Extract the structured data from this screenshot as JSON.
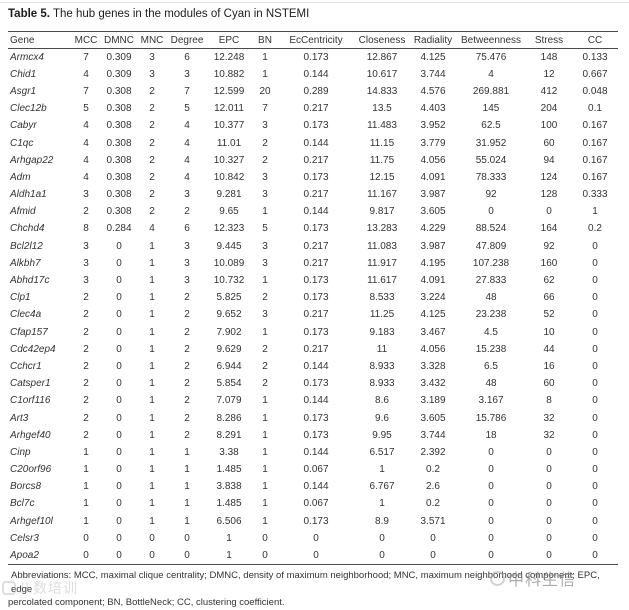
{
  "title": {
    "label": "Table 5.",
    "text": " The hub genes in the modules of Cyan in NSTEMI"
  },
  "table": {
    "columns": [
      "Gene",
      "MCC",
      "DMNC",
      "MNC",
      "Degree",
      "EPC",
      "BN",
      "EcCentricity",
      "Closeness",
      "Radiality",
      "Betweenness",
      "Stress",
      "CC"
    ],
    "rows": [
      [
        "Armcx4",
        "7",
        "0.309",
        "3",
        "6",
        "12.248",
        "1",
        "0.173",
        "12.867",
        "4.125",
        "75.476",
        "148",
        "0.133"
      ],
      [
        "Chid1",
        "4",
        "0.309",
        "3",
        "3",
        "10.882",
        "1",
        "0.144",
        "10.617",
        "3.744",
        "4",
        "12",
        "0.667"
      ],
      [
        "Asgr1",
        "7",
        "0.308",
        "2",
        "7",
        "12.599",
        "20",
        "0.289",
        "14.833",
        "4.576",
        "269.881",
        "412",
        "0.048"
      ],
      [
        "Clec12b",
        "5",
        "0.308",
        "2",
        "5",
        "12.011",
        "7",
        "0.217",
        "13.5",
        "4.403",
        "145",
        "204",
        "0.1"
      ],
      [
        "Cabyr",
        "4",
        "0.308",
        "2",
        "4",
        "10.377",
        "3",
        "0.173",
        "11.483",
        "3.952",
        "62.5",
        "100",
        "0.167"
      ],
      [
        "C1qc",
        "4",
        "0.308",
        "2",
        "4",
        "11.01",
        "2",
        "0.144",
        "11.15",
        "3.779",
        "31.952",
        "60",
        "0.167"
      ],
      [
        "Arhgap22",
        "4",
        "0.308",
        "2",
        "4",
        "10.327",
        "2",
        "0.217",
        "11.75",
        "4.056",
        "55.024",
        "94",
        "0.167"
      ],
      [
        "Adm",
        "4",
        "0.308",
        "2",
        "4",
        "10.842",
        "3",
        "0.173",
        "12.15",
        "4.091",
        "78.333",
        "124",
        "0.167"
      ],
      [
        "Aldh1a1",
        "3",
        "0.308",
        "2",
        "3",
        "9.281",
        "3",
        "0.217",
        "11.167",
        "3.987",
        "92",
        "128",
        "0.333"
      ],
      [
        "Afmid",
        "2",
        "0.308",
        "2",
        "2",
        "9.65",
        "1",
        "0.144",
        "9.817",
        "3.605",
        "0",
        "0",
        "1"
      ],
      [
        "Chchd4",
        "8",
        "0.284",
        "4",
        "6",
        "12.323",
        "5",
        "0.173",
        "13.283",
        "4.229",
        "88.524",
        "164",
        "0.2"
      ],
      [
        "Bcl2l12",
        "3",
        "0",
        "1",
        "3",
        "9.445",
        "3",
        "0.217",
        "11.083",
        "3.987",
        "47.809",
        "92",
        "0"
      ],
      [
        "Alkbh7",
        "3",
        "0",
        "1",
        "3",
        "10.089",
        "3",
        "0.217",
        "11.917",
        "4.195",
        "107.238",
        "160",
        "0"
      ],
      [
        "Abhd17c",
        "3",
        "0",
        "1",
        "3",
        "10.732",
        "1",
        "0.173",
        "11.617",
        "4.091",
        "27.833",
        "62",
        "0"
      ],
      [
        "Clp1",
        "2",
        "0",
        "1",
        "2",
        "5.825",
        "2",
        "0.173",
        "8.533",
        "3.224",
        "48",
        "66",
        "0"
      ],
      [
        "Clec4a",
        "2",
        "0",
        "1",
        "2",
        "9.652",
        "3",
        "0.217",
        "11.25",
        "4.125",
        "23.238",
        "52",
        "0"
      ],
      [
        "Cfap157",
        "2",
        "0",
        "1",
        "2",
        "7.902",
        "1",
        "0.173",
        "9.183",
        "3.467",
        "4.5",
        "10",
        "0"
      ],
      [
        "Cdc42ep4",
        "2",
        "0",
        "1",
        "2",
        "9.629",
        "2",
        "0.217",
        "11",
        "4.056",
        "15.238",
        "44",
        "0"
      ],
      [
        "Cchcr1",
        "2",
        "0",
        "1",
        "2",
        "6.944",
        "2",
        "0.144",
        "8.933",
        "3.328",
        "6.5",
        "16",
        "0"
      ],
      [
        "Catsper1",
        "2",
        "0",
        "1",
        "2",
        "5.854",
        "2",
        "0.173",
        "8.933",
        "3.432",
        "48",
        "60",
        "0"
      ],
      [
        "C1orf116",
        "2",
        "0",
        "1",
        "2",
        "7.079",
        "1",
        "0.144",
        "8.6",
        "3.189",
        "3.167",
        "8",
        "0"
      ],
      [
        "Art3",
        "2",
        "0",
        "1",
        "2",
        "8.286",
        "1",
        "0.173",
        "9.6",
        "3.605",
        "15.786",
        "32",
        "0"
      ],
      [
        "Arhgef40",
        "2",
        "0",
        "1",
        "2",
        "8.291",
        "1",
        "0.173",
        "9.95",
        "3.744",
        "18",
        "32",
        "0"
      ],
      [
        "Cinp",
        "1",
        "0",
        "1",
        "1",
        "3.38",
        "1",
        "0.144",
        "6.517",
        "2.392",
        "0",
        "0",
        "0"
      ],
      [
        "C20orf96",
        "1",
        "0",
        "1",
        "1",
        "1.485",
        "1",
        "0.067",
        "1",
        "0.2",
        "0",
        "0",
        "0"
      ],
      [
        "Borcs8",
        "1",
        "0",
        "1",
        "1",
        "3.838",
        "1",
        "0.144",
        "6.767",
        "2.6",
        "0",
        "0",
        "0"
      ],
      [
        "Bcl7c",
        "1",
        "0",
        "1",
        "1",
        "1.485",
        "1",
        "0.067",
        "1",
        "0.2",
        "0",
        "0",
        "0"
      ],
      [
        "Arhgef10l",
        "1",
        "0",
        "1",
        "1",
        "6.506",
        "1",
        "0.173",
        "8.9",
        "3.571",
        "0",
        "0",
        "0"
      ],
      [
        "Celsr3",
        "0",
        "0",
        "0",
        "0",
        "1",
        "0",
        "0",
        "0",
        "0",
        "0",
        "0",
        "0"
      ],
      [
        "Apoa2",
        "0",
        "0",
        "0",
        "0",
        "1",
        "0",
        "0",
        "0",
        "0",
        "0",
        "0",
        "0"
      ]
    ]
  },
  "footnote": {
    "line1": "Abbreviations: MCC, maximal clique centrality; DMNC, density of maximum neighborhood; MNC, maximum neighborhood component; EPC, edge",
    "line2": "percolated component; BN, BottleNeck; CC, clustering coefficient."
  },
  "watermarks": {
    "right_text": "中科生信",
    "left_text": "八数培训"
  },
  "colors": {
    "text": "#333333",
    "rule_dark": "#4a4a4a",
    "rule_light": "#e2e2e2",
    "watermark_gray": "#8f8f8f"
  }
}
